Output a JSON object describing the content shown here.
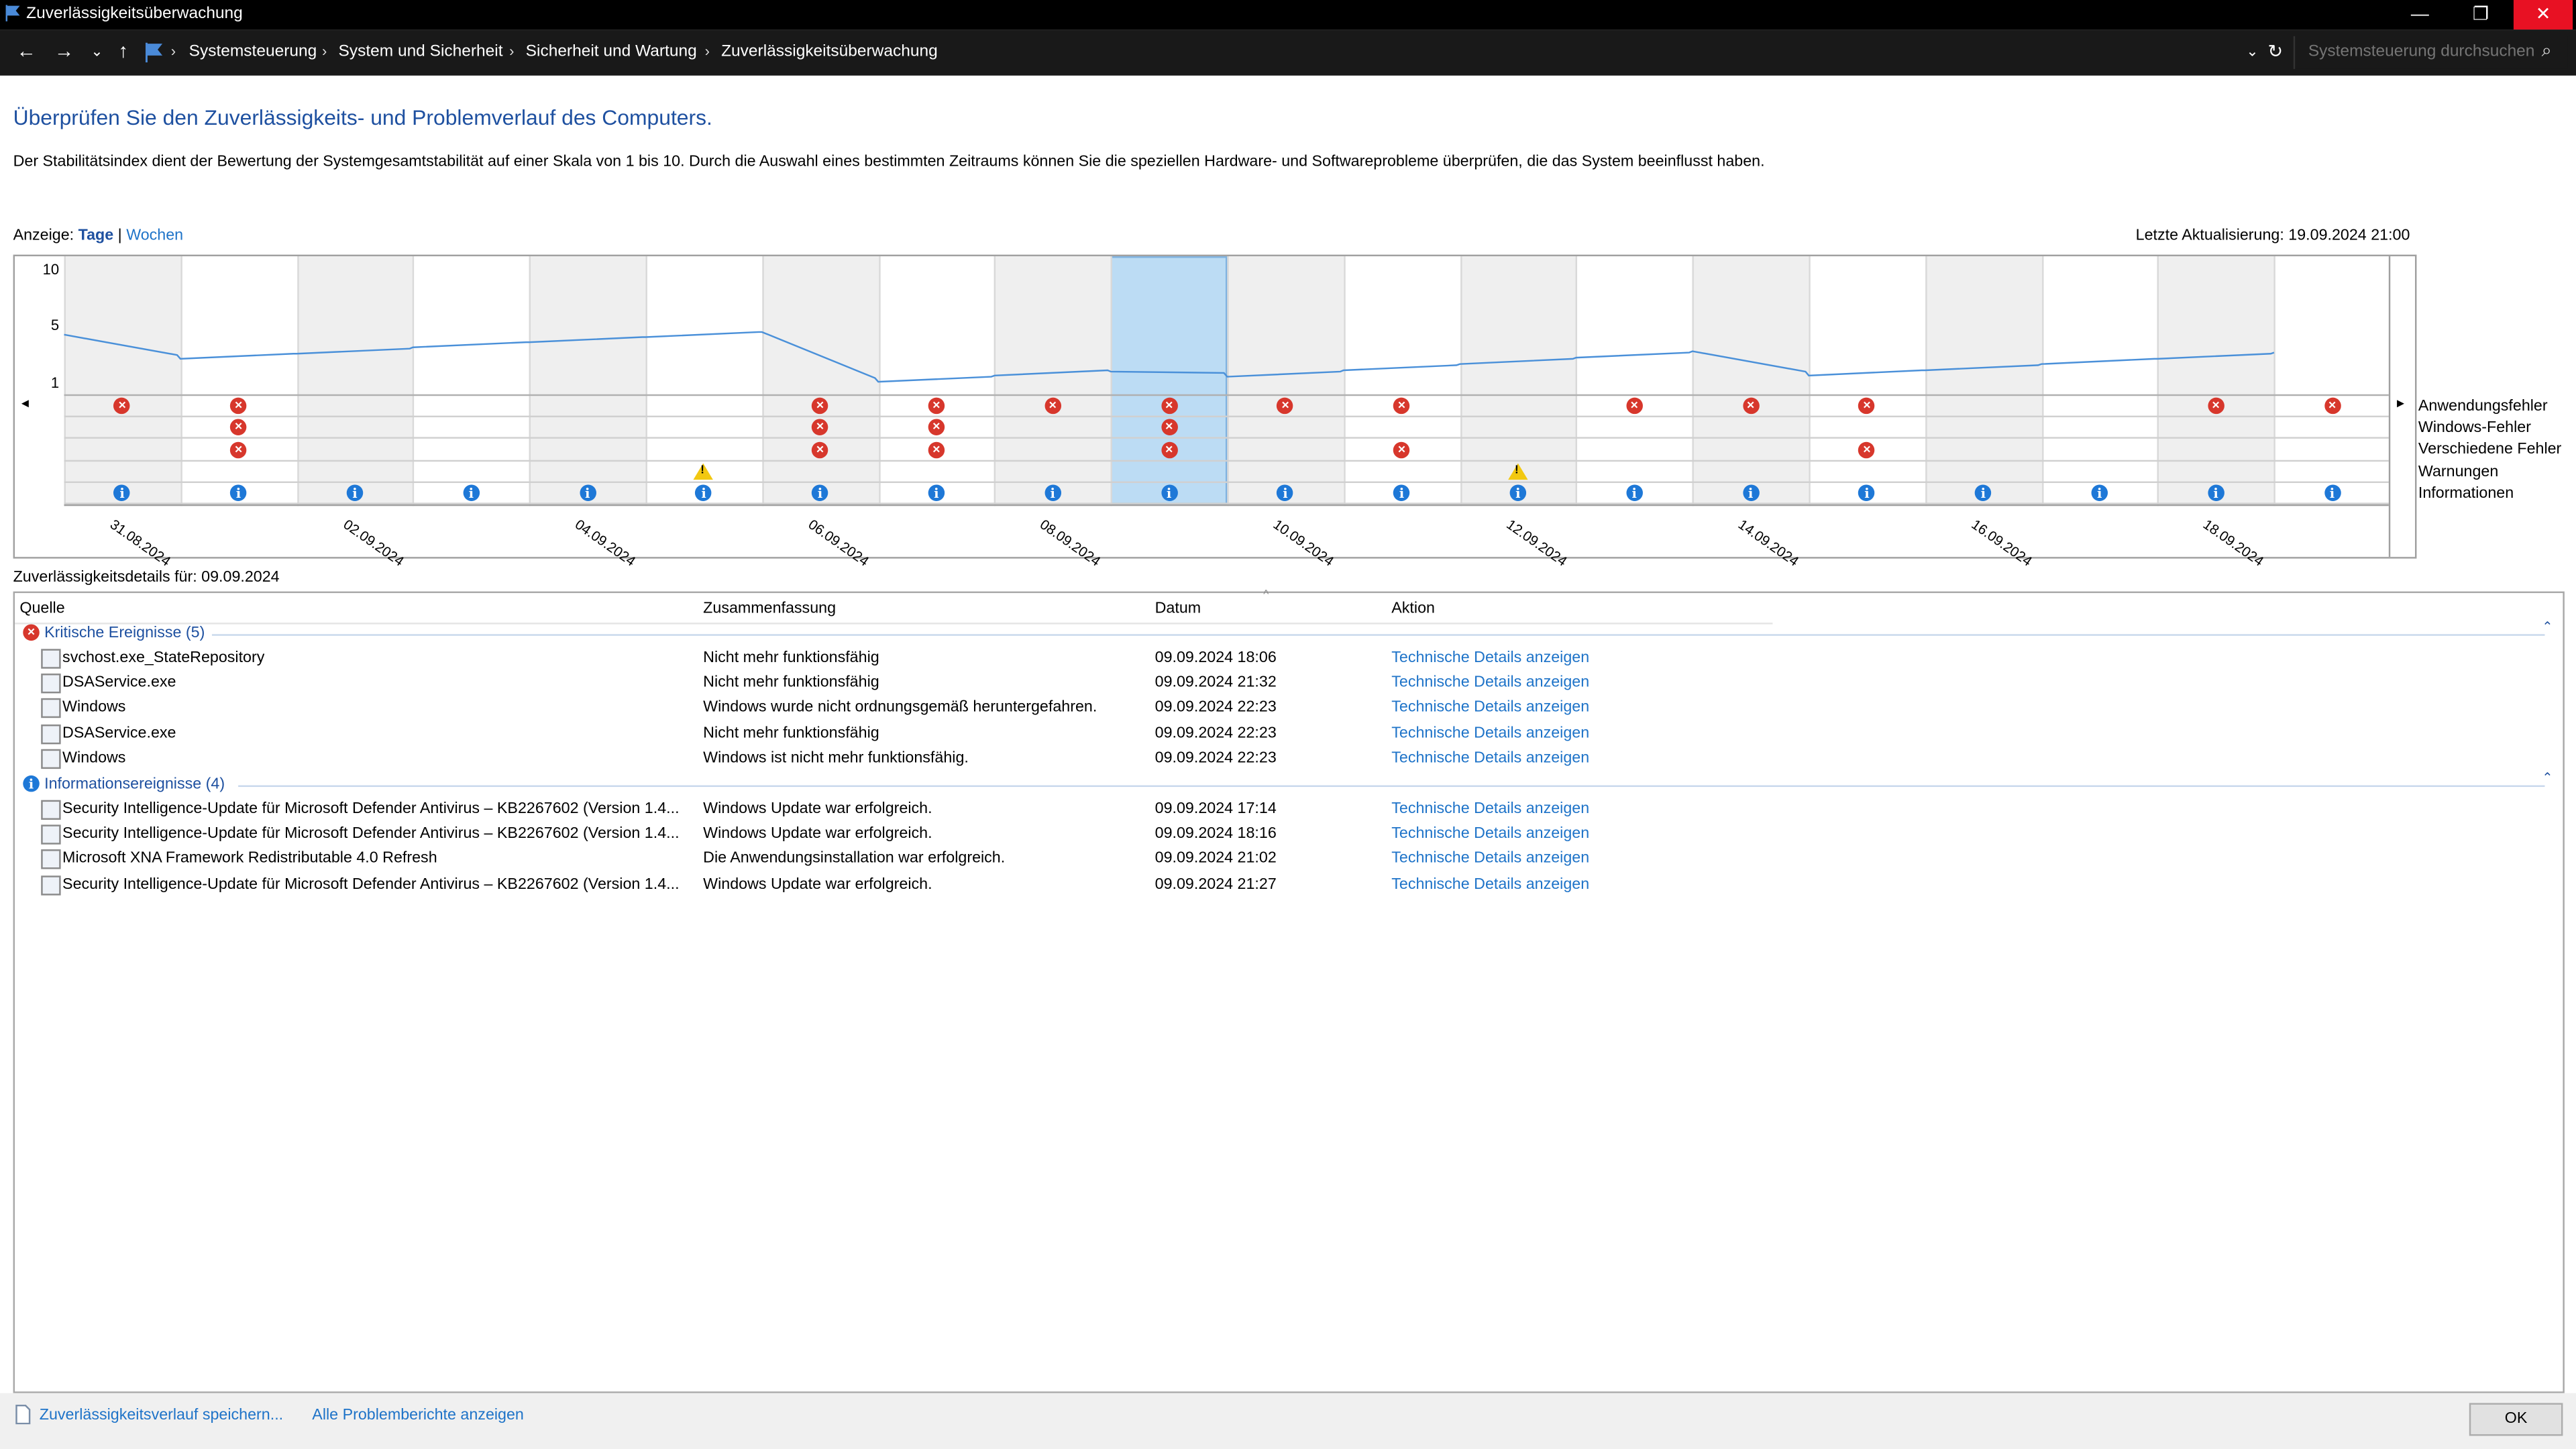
{
  "window": {
    "title": "Zuverlässigkeitsüberwachung",
    "minimize": "—",
    "maximize": "❐",
    "close": "✕"
  },
  "address": {
    "breadcrumbs": [
      "Systemsteuerung",
      "System und Sicherheit",
      "Sicherheit und Wartung",
      "Zuverlässigkeitsüberwachung"
    ],
    "search_placeholder": "Systemsteuerung durchsuchen"
  },
  "header": {
    "title": "Überprüfen Sie den Zuverlässigkeits- und Problemverlauf des Computers.",
    "description": "Der Stabilitätsindex dient der Bewertung der Systemgesamtstabilität auf einer Skala von 1 bis 10. Durch die Auswahl eines bestimmten Zeitraums können Sie die speziellen Hardware- und Softwareprobleme überprüfen, die das System beeinflusst haben."
  },
  "view": {
    "label": "Anzeige:",
    "days": "Tage",
    "sep": "|",
    "weeks": "Wochen"
  },
  "last_update": "Letzte Aktualisierung: 19.09.2024 21:00",
  "chart": {
    "y_ticks": [
      "10",
      "5",
      "1"
    ],
    "categories": [
      "Anwendungsfehler",
      "Windows-Fehler",
      "Verschiedene Fehler",
      "Warnungen",
      "Informationen"
    ],
    "dates": [
      "31.08.2024",
      "02.09.2024",
      "04.09.2024",
      "06.09.2024",
      "08.09.2024",
      "10.09.2024",
      "12.09.2024",
      "14.09.2024",
      "16.09.2024",
      "18.09.2024"
    ],
    "selected_index": 9,
    "nav_left": "◂",
    "nav_right": "▸"
  },
  "chart_data": {
    "type": "line",
    "title": "",
    "ylim": [
      1,
      10
    ],
    "x": [
      "31.08.2024",
      "01.09.2024",
      "02.09.2024",
      "03.09.2024",
      "04.09.2024",
      "05.09.2024",
      "06.09.2024",
      "07.09.2024",
      "08.09.2024",
      "09.09.2024",
      "10.09.2024",
      "11.09.2024",
      "12.09.2024",
      "13.09.2024",
      "14.09.2024",
      "15.09.2024",
      "16.09.2024",
      "17.09.2024",
      "18.09.2024",
      "19.09.2024"
    ],
    "series": [
      {
        "values": [
          4.9,
          3.0,
          3.4,
          3.9,
          4.3,
          4.7,
          5.1,
          1.2,
          1.7,
          2.0,
          1.6,
          2.1,
          2.6,
          3.1,
          3.6,
          1.7,
          2.1,
          2.6,
          3.0,
          3.5
        ]
      }
    ],
    "events": {
      "Anwendungsfehler": [
        0,
        1,
        6,
        7,
        8,
        9,
        10,
        11,
        13,
        14,
        15,
        18,
        19
      ],
      "Windows-Fehler": [
        1,
        6,
        7,
        9
      ],
      "Verschiedene Fehler": [
        1,
        6,
        7,
        9,
        11,
        15
      ],
      "Warnungen": [
        5,
        12
      ],
      "Informationen": [
        0,
        1,
        2,
        3,
        4,
        5,
        6,
        7,
        8,
        9,
        10,
        11,
        12,
        13,
        14,
        15,
        16,
        17,
        18,
        19
      ]
    }
  },
  "details": {
    "label": "Zuverlässigkeitsdetails für: 09.09.2024",
    "columns": [
      "Quelle",
      "Zusammenfassung",
      "Datum",
      "Aktion"
    ],
    "groups": [
      {
        "title": "Kritische Ereignisse (5)",
        "rows": [
          {
            "source": "svchost.exe_StateRepository",
            "summary": "Nicht mehr funktionsfähig",
            "date": "09.09.2024 18:06",
            "action": "Technische Details anzeigen"
          },
          {
            "source": "DSAService.exe",
            "summary": "Nicht mehr funktionsfähig",
            "date": "09.09.2024 21:32",
            "action": "Technische Details anzeigen"
          },
          {
            "source": "Windows",
            "summary": "Windows wurde nicht ordnungsgemäß heruntergefahren.",
            "date": "09.09.2024 22:23",
            "action": "Technische Details anzeigen"
          },
          {
            "source": "DSAService.exe",
            "summary": "Nicht mehr funktionsfähig",
            "date": "09.09.2024 22:23",
            "action": "Technische Details anzeigen"
          },
          {
            "source": "Windows",
            "summary": "Windows ist nicht mehr funktionsfähig.",
            "date": "09.09.2024 22:23",
            "action": "Technische Details anzeigen"
          }
        ]
      },
      {
        "title": "Informationsereignisse (4)",
        "rows": [
          {
            "source": "Security Intelligence-Update für Microsoft Defender Antivirus – KB2267602 (Version 1.4...",
            "summary": "Windows Update war erfolgreich.",
            "date": "09.09.2024 17:14",
            "action": "Technische Details anzeigen"
          },
          {
            "source": "Security Intelligence-Update für Microsoft Defender Antivirus – KB2267602 (Version 1.4...",
            "summary": "Windows Update war erfolgreich.",
            "date": "09.09.2024 18:16",
            "action": "Technische Details anzeigen"
          },
          {
            "source": "Microsoft XNA Framework Redistributable 4.0 Refresh",
            "summary": "Die Anwendungsinstallation war erfolgreich.",
            "date": "09.09.2024 21:02",
            "action": "Technische Details anzeigen"
          },
          {
            "source": "Security Intelligence-Update für Microsoft Defender Antivirus – KB2267602 (Version 1.4...",
            "summary": "Windows Update war erfolgreich.",
            "date": "09.09.2024 21:27",
            "action": "Technische Details anzeigen"
          }
        ]
      }
    ]
  },
  "footer": {
    "save_link": "Zuverlässigkeitsverlauf speichern...",
    "reports_link": "Alle Problemberichte anzeigen",
    "ok": "OK"
  },
  "colors": {
    "accent": "#1e50a0",
    "link": "#1e73c8",
    "error": "#d7372c",
    "info": "#1e78d7",
    "warning": "#f2c811",
    "selection": "#bcdcf4"
  }
}
